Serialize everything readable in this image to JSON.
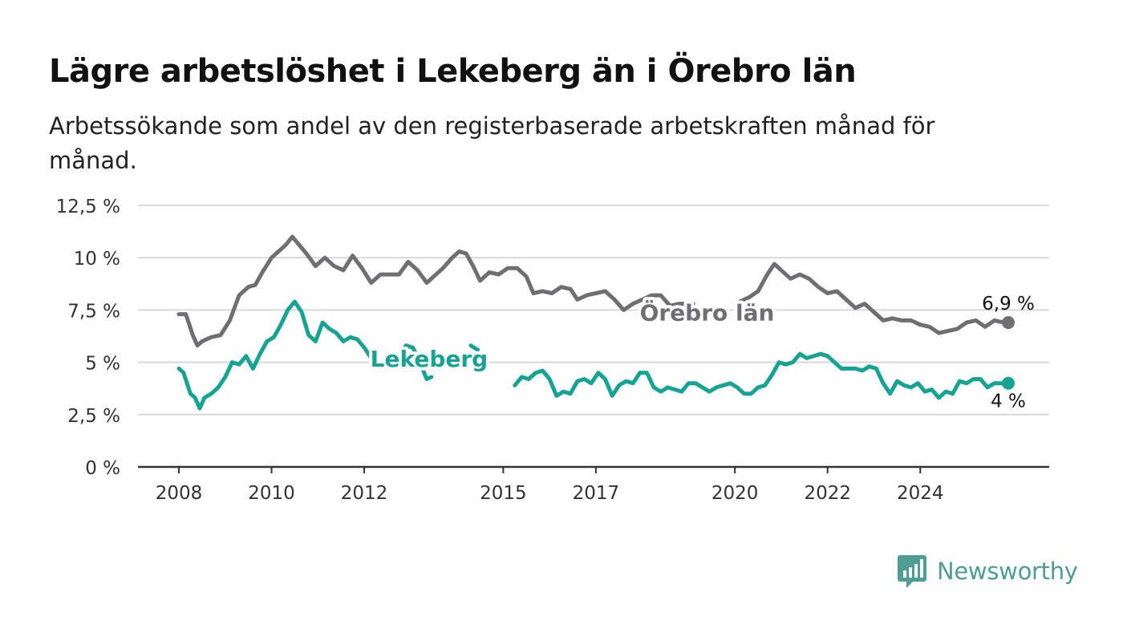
{
  "header": {
    "title": "Lägre arbetslöshet i Lekeberg än i Örebro län",
    "subtitle": "Arbetssökande som andel av den registerbaserade arbetskraften månad för månad."
  },
  "brand": {
    "name": "Newsworthy",
    "icon": "newsworthy-logo-icon",
    "color": "#4e9e96"
  },
  "chart_data": {
    "type": "line",
    "x_range": [
      2007.25,
      2025.75
    ],
    "ylim": [
      0,
      12.5
    ],
    "y_ticks": [
      0,
      2.5,
      5,
      7.5,
      10,
      12.5
    ],
    "y_tick_labels": [
      "0 %",
      "2,5 %",
      "5 %",
      "7,5 %",
      "10 %",
      "12,5 %"
    ],
    "x_ticks": [
      2008,
      2010,
      2012,
      2015,
      2017,
      2020,
      2022,
      2024
    ],
    "x_tick_labels": [
      "2008",
      "2010",
      "2012",
      "2015",
      "2017",
      "2020",
      "2022",
      "2024"
    ],
    "grid": true,
    "series": [
      {
        "name": "Örebro län",
        "color": "#6f6e73",
        "end_label": "6,9 %",
        "points": [
          [
            2008.0,
            7.3
          ],
          [
            2008.15,
            7.3
          ],
          [
            2008.3,
            6.3
          ],
          [
            2008.4,
            5.8
          ],
          [
            2008.5,
            6.0
          ],
          [
            2008.7,
            6.2
          ],
          [
            2008.9,
            6.3
          ],
          [
            2009.1,
            7.0
          ],
          [
            2009.3,
            8.2
          ],
          [
            2009.5,
            8.6
          ],
          [
            2009.65,
            8.7
          ],
          [
            2009.8,
            9.3
          ],
          [
            2010.0,
            10.0
          ],
          [
            2010.15,
            10.3
          ],
          [
            2010.3,
            10.6
          ],
          [
            2010.45,
            11.0
          ],
          [
            2010.6,
            10.6
          ],
          [
            2010.75,
            10.2
          ],
          [
            2010.95,
            9.6
          ],
          [
            2011.15,
            10.0
          ],
          [
            2011.35,
            9.6
          ],
          [
            2011.55,
            9.4
          ],
          [
            2011.75,
            10.1
          ],
          [
            2011.95,
            9.5
          ],
          [
            2012.15,
            8.8
          ],
          [
            2012.35,
            9.2
          ],
          [
            2012.55,
            9.2
          ],
          [
            2012.75,
            9.2
          ],
          [
            2012.95,
            9.8
          ],
          [
            2013.15,
            9.4
          ],
          [
            2013.35,
            8.8
          ],
          [
            2013.5,
            9.1
          ],
          [
            2013.7,
            9.5
          ],
          [
            2013.9,
            10.0
          ],
          [
            2014.05,
            10.3
          ],
          [
            2014.2,
            10.2
          ],
          [
            2014.35,
            9.6
          ],
          [
            2014.5,
            8.9
          ],
          [
            2014.7,
            9.3
          ],
          [
            2014.9,
            9.2
          ],
          [
            2015.1,
            9.5
          ],
          [
            2015.3,
            9.5
          ],
          [
            2015.5,
            9.1
          ],
          [
            2015.65,
            8.3
          ],
          [
            2015.85,
            8.4
          ],
          [
            2016.05,
            8.3
          ],
          [
            2016.25,
            8.6
          ],
          [
            2016.45,
            8.5
          ],
          [
            2016.6,
            8.0
          ],
          [
            2016.8,
            8.2
          ],
          [
            2017.0,
            8.3
          ],
          [
            2017.2,
            8.4
          ],
          [
            2017.4,
            8.0
          ],
          [
            2017.6,
            7.5
          ],
          [
            2017.8,
            7.8
          ],
          [
            2018.0,
            8.0
          ],
          [
            2018.2,
            8.2
          ],
          [
            2018.4,
            8.2
          ],
          [
            2018.6,
            7.7
          ],
          [
            2018.8,
            7.8
          ],
          [
            2019.0,
            7.8
          ],
          [
            2019.1,
            7.8
          ],
          null,
          [
            2020.1,
            7.9
          ],
          [
            2020.3,
            8.1
          ],
          [
            2020.5,
            8.4
          ],
          [
            2020.7,
            9.2
          ],
          [
            2020.85,
            9.7
          ],
          [
            2021.0,
            9.4
          ],
          [
            2021.2,
            9.0
          ],
          [
            2021.4,
            9.2
          ],
          [
            2021.6,
            9.0
          ],
          [
            2021.8,
            8.6
          ],
          [
            2022.0,
            8.3
          ],
          [
            2022.2,
            8.4
          ],
          [
            2022.4,
            8.0
          ],
          [
            2022.6,
            7.6
          ],
          [
            2022.8,
            7.8
          ],
          [
            2023.0,
            7.4
          ],
          [
            2023.2,
            7.0
          ],
          [
            2023.4,
            7.1
          ],
          [
            2023.6,
            7.0
          ],
          [
            2023.8,
            7.0
          ],
          [
            2024.0,
            6.8
          ],
          [
            2024.2,
            6.7
          ],
          [
            2024.4,
            6.4
          ],
          [
            2024.6,
            6.5
          ],
          [
            2024.8,
            6.6
          ],
          [
            2025.0,
            6.9
          ],
          [
            2025.2,
            7.0
          ],
          [
            2025.4,
            6.7
          ],
          [
            2025.6,
            7.0
          ],
          [
            2025.8,
            6.9
          ],
          [
            2025.9,
            6.9
          ]
        ]
      },
      {
        "name": "Lekeberg",
        "color": "#16a394",
        "end_label": "4 %",
        "points": [
          [
            2008.0,
            4.7
          ],
          [
            2008.1,
            4.5
          ],
          [
            2008.25,
            3.5
          ],
          [
            2008.35,
            3.3
          ],
          [
            2008.45,
            2.8
          ],
          [
            2008.55,
            3.3
          ],
          [
            2008.7,
            3.5
          ],
          [
            2008.85,
            3.8
          ],
          [
            2009.0,
            4.3
          ],
          [
            2009.15,
            5.0
          ],
          [
            2009.3,
            4.9
          ],
          [
            2009.45,
            5.3
          ],
          [
            2009.6,
            4.7
          ],
          [
            2009.75,
            5.4
          ],
          [
            2009.9,
            6.0
          ],
          [
            2010.05,
            6.2
          ],
          [
            2010.2,
            6.8
          ],
          [
            2010.35,
            7.5
          ],
          [
            2010.5,
            7.9
          ],
          [
            2010.65,
            7.4
          ],
          [
            2010.8,
            6.3
          ],
          [
            2010.95,
            6.0
          ],
          [
            2011.1,
            6.9
          ],
          [
            2011.25,
            6.6
          ],
          [
            2011.4,
            6.4
          ],
          [
            2011.55,
            6.0
          ],
          [
            2011.7,
            6.2
          ],
          [
            2011.85,
            6.1
          ],
          [
            2012.0,
            5.7
          ],
          [
            2012.15,
            5.2
          ],
          [
            2012.3,
            5.0
          ],
          [
            2012.45,
            5.0
          ],
          [
            2012.6,
            5.3
          ],
          [
            2012.75,
            5.3
          ],
          [
            2012.9,
            5.8
          ],
          [
            2013.05,
            5.7
          ],
          [
            2013.2,
            5.0
          ],
          [
            2013.35,
            4.2
          ],
          [
            2013.45,
            4.3
          ],
          null,
          [
            2014.3,
            5.8
          ],
          [
            2014.45,
            5.6
          ],
          null,
          [
            2015.25,
            3.9
          ],
          [
            2015.4,
            4.3
          ],
          [
            2015.55,
            4.2
          ],
          [
            2015.7,
            4.5
          ],
          [
            2015.85,
            4.6
          ],
          [
            2016.0,
            4.2
          ],
          [
            2016.15,
            3.4
          ],
          [
            2016.3,
            3.6
          ],
          [
            2016.45,
            3.5
          ],
          [
            2016.6,
            4.1
          ],
          [
            2016.75,
            4.2
          ],
          [
            2016.9,
            4.0
          ],
          [
            2017.05,
            4.5
          ],
          [
            2017.2,
            4.2
          ],
          [
            2017.35,
            3.4
          ],
          [
            2017.5,
            3.9
          ],
          [
            2017.65,
            4.1
          ],
          [
            2017.8,
            4.0
          ],
          [
            2017.95,
            4.5
          ],
          [
            2018.1,
            4.5
          ],
          [
            2018.25,
            3.8
          ],
          [
            2018.4,
            3.6
          ],
          [
            2018.55,
            3.8
          ],
          [
            2018.7,
            3.7
          ],
          [
            2018.85,
            3.6
          ],
          [
            2019.0,
            4.0
          ],
          [
            2019.15,
            4.0
          ],
          [
            2019.3,
            3.8
          ],
          [
            2019.45,
            3.6
          ],
          [
            2019.6,
            3.8
          ],
          [
            2019.75,
            3.9
          ],
          [
            2019.9,
            4.0
          ],
          [
            2020.05,
            3.8
          ],
          [
            2020.2,
            3.5
          ],
          [
            2020.35,
            3.5
          ],
          [
            2020.5,
            3.8
          ],
          [
            2020.65,
            3.9
          ],
          [
            2020.8,
            4.4
          ],
          [
            2020.95,
            5.0
          ],
          [
            2021.1,
            4.9
          ],
          [
            2021.25,
            5.0
          ],
          [
            2021.4,
            5.4
          ],
          [
            2021.55,
            5.2
          ],
          [
            2021.7,
            5.3
          ],
          [
            2021.85,
            5.4
          ],
          [
            2022.0,
            5.3
          ],
          [
            2022.15,
            5.0
          ],
          [
            2022.3,
            4.7
          ],
          [
            2022.45,
            4.7
          ],
          [
            2022.6,
            4.7
          ],
          [
            2022.75,
            4.6
          ],
          [
            2022.9,
            4.8
          ],
          [
            2023.05,
            4.7
          ],
          [
            2023.2,
            4.0
          ],
          [
            2023.35,
            3.5
          ],
          [
            2023.5,
            4.1
          ],
          [
            2023.65,
            3.9
          ],
          [
            2023.8,
            3.8
          ],
          [
            2023.95,
            4.0
          ],
          [
            2024.1,
            3.6
          ],
          [
            2024.25,
            3.7
          ],
          [
            2024.4,
            3.3
          ],
          [
            2024.55,
            3.6
          ],
          [
            2024.7,
            3.5
          ],
          [
            2024.85,
            4.1
          ],
          [
            2025.0,
            4.0
          ],
          [
            2025.15,
            4.2
          ],
          [
            2025.3,
            4.2
          ],
          [
            2025.45,
            3.8
          ],
          [
            2025.6,
            4.0
          ],
          [
            2025.75,
            4.0
          ],
          [
            2025.9,
            4.0
          ]
        ]
      }
    ],
    "annotations": [
      {
        "text": "Örebro län",
        "series": "Örebro län",
        "x": 2019.4,
        "y": 7.0
      },
      {
        "text": "Lekeberg",
        "series": "Lekeberg",
        "x": 2013.4,
        "y": 4.8
      }
    ]
  }
}
